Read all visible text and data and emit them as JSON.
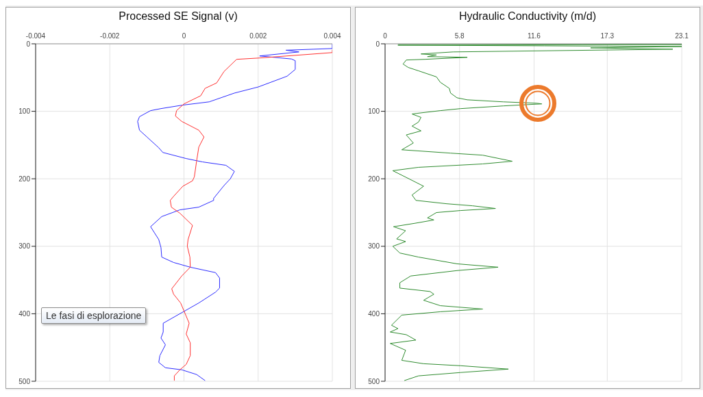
{
  "chart_data": [
    {
      "type": "line",
      "title": "Processed SE Signal (v)",
      "xlim": [
        -0.004,
        0.004
      ],
      "xticks": [
        -0.004,
        -0.002,
        0,
        0.002,
        0.004
      ],
      "ylim": [
        500,
        0
      ],
      "yticks": [
        0,
        100,
        200,
        300,
        400,
        500
      ],
      "grid": true,
      "annotations": [
        "Le fasi di esplorazione"
      ],
      "series": [
        {
          "color": "#2b2bff",
          "x": [
            0.004,
            0.004,
            0.0035,
            0.00275,
            0.0031,
            0.00204,
            0.0029,
            0.003,
            0.003,
            0.00278,
            0.002,
            0.00136,
            0.00068,
            -6e-05,
            -0.00062,
            -0.0009,
            -0.0012,
            -0.00125,
            -0.0012,
            -0.001,
            -0.00068,
            -0.00057,
            6e-05,
            0.0005,
            0.00113,
            0.00136,
            0.00125,
            0.00108,
            0.0008,
            0.0008,
            0.0004,
            -0.00011,
            -0.0006,
            -0.0009,
            -0.00068,
            -0.00062,
            -0.0006,
            -0.00028,
            0.00017,
            0.00085,
            0.00096,
            0.00096,
            0.00085,
            0.0004,
            -0.00056,
            -0.00056,
            -0.00062,
            -0.0005,
            -0.00065,
            -0.00068,
            -0.0005,
            -6e-05,
            0.00034,
            0.00057
          ],
          "values": [
            0,
            7,
            8,
            9.5,
            12,
            18,
            22.5,
            25,
            38,
            48,
            64,
            73,
            86,
            91,
            96,
            99,
            108,
            115,
            128,
            138,
            154,
            161,
            170,
            175,
            180,
            189,
            200,
            210,
            229,
            232,
            242,
            246,
            256,
            271,
            290,
            302,
            316,
            324,
            331,
            339,
            347,
            362,
            368,
            384,
            414,
            427,
            436,
            446,
            462,
            472,
            480,
            483,
            490,
            499
          ]
        },
        {
          "color": "#ff3030",
          "x": [
            0.004,
            0.004,
            0.00204,
            0.00142,
            0.00108,
            0.00088,
            0.00057,
            0.00045,
            0,
            -0.0002,
            -0.00023,
            -6e-05,
            0.0004,
            0.00054,
            0.0004,
            0.00034,
            0.00028,
            0.00023,
            -3e-05,
            -0.00028,
            -0.00037,
            -0.00034,
            -0.00011,
            0.00023,
            0.00011,
            9e-05,
            0.00016,
            0.00017,
            -6e-05,
            -0.00033,
            -0.00028,
            -9e-05,
            0.00014,
            6e-05,
            0.00017,
            0.00017,
            6e-05,
            -0.00011,
            -0.00026,
            -0.00026
          ],
          "values": [
            9,
            13,
            21,
            23,
            41,
            58,
            66,
            77,
            89,
            99,
            107,
            115,
            128,
            138,
            153,
            174,
            197,
            203,
            211,
            226,
            232,
            242,
            251,
            269,
            290,
            300,
            316,
            331,
            344,
            363,
            371,
            384,
            414,
            430,
            443,
            462,
            475,
            483,
            492,
            499
          ]
        }
      ]
    },
    {
      "type": "line",
      "title": "Hydraulic Conductivity (m/d)",
      "xlim": [
        0,
        23.1
      ],
      "xticks": [
        0,
        5.8,
        11.6,
        17.3,
        23.1
      ],
      "ylim": [
        500,
        0
      ],
      "yticks": [
        0,
        100,
        200,
        300,
        400,
        500
      ],
      "grid": true,
      "series": [
        {
          "color": "#2e8b2e",
          "x": [
            1.0,
            15.4,
            23.1,
            1.0,
            12.4,
            23.1,
            16,
            22.4,
            5.3,
            2.8,
            4.0,
            3.3,
            6.4,
            3.1,
            1.65,
            1.4,
            1.8,
            2.6,
            4.0,
            4.3,
            5.0,
            5.1,
            5.6,
            6.4,
            9.2,
            11.8,
            12.2,
            9.2,
            5.9,
            4.3,
            2.5,
            2.1,
            2.8,
            2.6,
            2.1,
            2.8,
            1.65,
            2.2,
            1.3,
            5.1,
            7.6,
            9.9,
            7.6,
            2.6,
            0.6,
            1.65,
            3.0,
            2.1,
            2.4,
            4.8,
            6.8,
            8.6,
            5.9,
            4.0,
            3.3,
            3.8,
            2.3,
            0.66,
            1.6,
            0.9,
            1.6,
            0.6,
            1.15,
            2.6,
            5.6,
            8.8,
            5.6,
            2.0,
            1.15,
            1.15,
            3.5,
            3.8,
            3.0,
            4.3,
            7.6,
            4.3,
            1.3,
            0.5,
            1.0,
            0.4,
            1.65,
            2.4,
            0.4,
            1.6,
            1.3,
            3.0,
            5.9,
            9.6,
            5.9,
            2.6,
            1.5
          ],
          "values": [
            0,
            0,
            1,
            2,
            3,
            4,
            6,
            8,
            12,
            15,
            16.5,
            19,
            20,
            23,
            24,
            30,
            35,
            40,
            49,
            57,
            66,
            73,
            80,
            83,
            86,
            88,
            89,
            92,
            96,
            99,
            103,
            104,
            109,
            116,
            122,
            129,
            135,
            147,
            157,
            162,
            165,
            174,
            178,
            183,
            188,
            198,
            211,
            224,
            232,
            237,
            240,
            244,
            247,
            250,
            258,
            261,
            266,
            271,
            277,
            289,
            293,
            300,
            310,
            316,
            326,
            331,
            336,
            344,
            354,
            362,
            367,
            371,
            380,
            388,
            393,
            397,
            402,
            417,
            422,
            427,
            431,
            439,
            444,
            454,
            469,
            474,
            477,
            482,
            487,
            492,
            499
          ]
        }
      ]
    }
  ]
}
